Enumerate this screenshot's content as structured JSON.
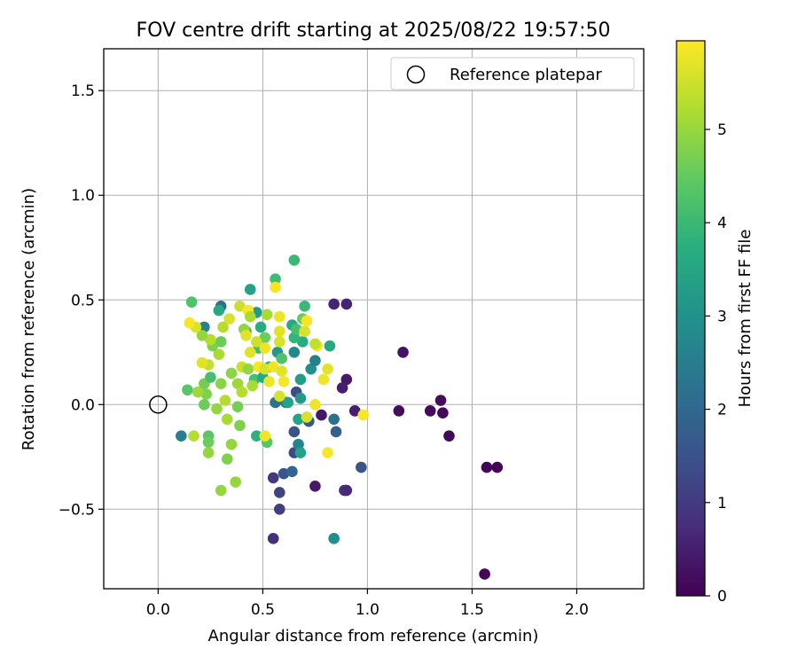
{
  "chart_data": {
    "type": "scatter",
    "title": "FOV centre drift starting at 2025/08/22 19:57:50",
    "xlabel": "Angular distance from reference (arcmin)",
    "ylabel": "Rotation from reference (arcmin)",
    "xlim": [
      -0.26,
      2.32
    ],
    "ylim": [
      -0.88,
      1.7
    ],
    "xticks": [
      0.0,
      0.5,
      1.0,
      1.5,
      2.0
    ],
    "xtick_labels": [
      "0.0",
      "0.5",
      "1.0",
      "1.5",
      "2.0"
    ],
    "yticks": [
      -0.5,
      0.0,
      0.5,
      1.0,
      1.5
    ],
    "ytick_labels": [
      "−0.5",
      "0.0",
      "0.5",
      "1.0",
      "1.5"
    ],
    "grid": true,
    "legend": {
      "position": "upper-right",
      "label": "Reference platepar",
      "marker": "open-circle"
    },
    "reference_point": {
      "x": 0.0,
      "y": 0.0
    },
    "colorbar": {
      "label": "Hours from first FF file",
      "colormap": "viridis",
      "range": [
        0,
        5.95
      ],
      "ticks": [
        0,
        1,
        2,
        3,
        4,
        5
      ],
      "tick_labels": [
        "0",
        "1",
        "2",
        "3",
        "4",
        "5"
      ]
    },
    "points": [
      {
        "x": 1.56,
        "y": -0.81,
        "h": 0.05
      },
      {
        "x": 1.57,
        "y": -0.3,
        "h": 0.05
      },
      {
        "x": 1.62,
        "y": -0.3,
        "h": 0.05
      },
      {
        "x": 1.39,
        "y": -0.15,
        "h": 0.1
      },
      {
        "x": 1.36,
        "y": -0.04,
        "h": 0.1
      },
      {
        "x": 1.35,
        "y": 0.02,
        "h": 0.2
      },
      {
        "x": 1.3,
        "y": -0.03,
        "h": 0.15
      },
      {
        "x": 1.15,
        "y": -0.03,
        "h": 0.2
      },
      {
        "x": 1.17,
        "y": 0.25,
        "h": 0.3
      },
      {
        "x": 0.94,
        "y": -0.03,
        "h": 0.5
      },
      {
        "x": 0.9,
        "y": 0.12,
        "h": 0.4
      },
      {
        "x": 0.88,
        "y": 0.08,
        "h": 0.5
      },
      {
        "x": 0.84,
        "y": 0.48,
        "h": 0.6
      },
      {
        "x": 0.9,
        "y": 0.48,
        "h": 0.6
      },
      {
        "x": 0.78,
        "y": -0.05,
        "h": 0.4
      },
      {
        "x": 0.75,
        "y": -0.39,
        "h": 0.4
      },
      {
        "x": 0.89,
        "y": -0.41,
        "h": 0.9
      },
      {
        "x": 0.9,
        "y": -0.41,
        "h": 0.7
      },
      {
        "x": 0.97,
        "y": -0.3,
        "h": 1.6
      },
      {
        "x": 0.55,
        "y": -0.64,
        "h": 0.8
      },
      {
        "x": 0.58,
        "y": -0.5,
        "h": 1.1
      },
      {
        "x": 0.58,
        "y": -0.42,
        "h": 1.2
      },
      {
        "x": 0.55,
        "y": -0.35,
        "h": 1.0
      },
      {
        "x": 0.6,
        "y": -0.33,
        "h": 1.6
      },
      {
        "x": 0.65,
        "y": -0.23,
        "h": 1.3
      },
      {
        "x": 0.65,
        "y": -0.13,
        "h": 1.5
      },
      {
        "x": 0.66,
        "y": 0.06,
        "h": 1.4
      },
      {
        "x": 0.64,
        "y": -0.32,
        "h": 2.0
      },
      {
        "x": 0.84,
        "y": -0.64,
        "h": 2.9
      },
      {
        "x": 0.85,
        "y": -0.13,
        "h": 1.8
      },
      {
        "x": 0.84,
        "y": -0.07,
        "h": 2.2
      },
      {
        "x": 0.72,
        "y": -0.08,
        "h": 1.7
      },
      {
        "x": 0.56,
        "y": 0.01,
        "h": 2.2
      },
      {
        "x": 0.61,
        "y": 0.01,
        "h": 2.4
      },
      {
        "x": 0.67,
        "y": -0.19,
        "h": 2.7
      },
      {
        "x": 0.68,
        "y": -0.23,
        "h": 3.4
      },
      {
        "x": 0.67,
        "y": -0.07,
        "h": 3.5
      },
      {
        "x": 0.68,
        "y": 0.03,
        "h": 3.2
      },
      {
        "x": 0.73,
        "y": 0.17,
        "h": 3.0
      },
      {
        "x": 0.75,
        "y": 0.21,
        "h": 2.6
      },
      {
        "x": 0.65,
        "y": 0.25,
        "h": 2.8
      },
      {
        "x": 0.68,
        "y": 0.12,
        "h": 3.3
      },
      {
        "x": 0.82,
        "y": 0.28,
        "h": 3.6
      },
      {
        "x": 0.69,
        "y": 0.3,
        "h": 3.7
      },
      {
        "x": 0.64,
        "y": 0.38,
        "h": 3.6
      },
      {
        "x": 0.65,
        "y": 0.32,
        "h": 3.9
      },
      {
        "x": 0.66,
        "y": 0.36,
        "h": 4.2
      },
      {
        "x": 0.7,
        "y": 0.47,
        "h": 4.0
      },
      {
        "x": 0.69,
        "y": 0.41,
        "h": 4.6
      },
      {
        "x": 0.65,
        "y": 0.69,
        "h": 4.0
      },
      {
        "x": 0.56,
        "y": 0.6,
        "h": 4.1
      },
      {
        "x": 0.44,
        "y": 0.55,
        "h": 3.4
      },
      {
        "x": 0.3,
        "y": 0.47,
        "h": 2.2
      },
      {
        "x": 0.29,
        "y": 0.45,
        "h": 3.6
      },
      {
        "x": 0.16,
        "y": 0.49,
        "h": 4.3
      },
      {
        "x": 0.22,
        "y": 0.37,
        "h": 2.6
      },
      {
        "x": 0.47,
        "y": 0.44,
        "h": 3.2
      },
      {
        "x": 0.49,
        "y": 0.37,
        "h": 3.7
      },
      {
        "x": 0.42,
        "y": 0.35,
        "h": 4.0
      },
      {
        "x": 0.51,
        "y": 0.32,
        "h": 4.6
      },
      {
        "x": 0.48,
        "y": 0.27,
        "h": 4.1
      },
      {
        "x": 0.57,
        "y": 0.25,
        "h": 3.2
      },
      {
        "x": 0.53,
        "y": 0.18,
        "h": 3.9
      },
      {
        "x": 0.59,
        "y": 0.22,
        "h": 4.3
      },
      {
        "x": 0.46,
        "y": 0.12,
        "h": 4.2
      },
      {
        "x": 0.5,
        "y": 0.13,
        "h": 3.6
      },
      {
        "x": 0.62,
        "y": 0.01,
        "h": 3.4
      },
      {
        "x": 0.47,
        "y": -0.15,
        "h": 3.8
      },
      {
        "x": 0.52,
        "y": -0.18,
        "h": 4.4
      },
      {
        "x": 0.11,
        "y": -0.15,
        "h": 2.6
      },
      {
        "x": 0.24,
        "y": -0.15,
        "h": 4.4
      },
      {
        "x": 0.24,
        "y": -0.18,
        "h": 4.6
      },
      {
        "x": 0.24,
        "y": -0.23,
        "h": 5.0
      },
      {
        "x": 0.33,
        "y": -0.26,
        "h": 4.8
      },
      {
        "x": 0.35,
        "y": -0.19,
        "h": 5.0
      },
      {
        "x": 0.37,
        "y": -0.37,
        "h": 5.0
      },
      {
        "x": 0.3,
        "y": -0.41,
        "h": 5.0
      },
      {
        "x": 0.39,
        "y": -0.1,
        "h": 4.8
      },
      {
        "x": 0.33,
        "y": -0.07,
        "h": 5.2
      },
      {
        "x": 0.28,
        "y": -0.02,
        "h": 5.0
      },
      {
        "x": 0.22,
        "y": 0.0,
        "h": 4.6
      },
      {
        "x": 0.23,
        "y": 0.05,
        "h": 4.8
      },
      {
        "x": 0.14,
        "y": 0.07,
        "h": 4.4
      },
      {
        "x": 0.19,
        "y": 0.06,
        "h": 5.1
      },
      {
        "x": 0.22,
        "y": 0.1,
        "h": 4.7
      },
      {
        "x": 0.25,
        "y": 0.13,
        "h": 4.2
      },
      {
        "x": 0.3,
        "y": 0.1,
        "h": 4.9
      },
      {
        "x": 0.32,
        "y": 0.02,
        "h": 5.3
      },
      {
        "x": 0.35,
        "y": 0.15,
        "h": 4.9
      },
      {
        "x": 0.38,
        "y": 0.1,
        "h": 5.1
      },
      {
        "x": 0.38,
        "y": -0.01,
        "h": 4.7
      },
      {
        "x": 0.4,
        "y": 0.06,
        "h": 5.3
      },
      {
        "x": 0.45,
        "y": 0.09,
        "h": 5.2
      },
      {
        "x": 0.4,
        "y": 0.18,
        "h": 5.5
      },
      {
        "x": 0.43,
        "y": 0.17,
        "h": 5.0
      },
      {
        "x": 0.29,
        "y": 0.24,
        "h": 5.2
      },
      {
        "x": 0.24,
        "y": 0.19,
        "h": 5.4
      },
      {
        "x": 0.21,
        "y": 0.2,
        "h": 5.7
      },
      {
        "x": 0.26,
        "y": 0.28,
        "h": 4.8
      },
      {
        "x": 0.3,
        "y": 0.3,
        "h": 4.6
      },
      {
        "x": 0.25,
        "y": 0.31,
        "h": 5.3
      },
      {
        "x": 0.21,
        "y": 0.33,
        "h": 5.0
      },
      {
        "x": 0.18,
        "y": 0.37,
        "h": 5.6
      },
      {
        "x": 0.15,
        "y": 0.39,
        "h": 5.9
      },
      {
        "x": 0.31,
        "y": 0.37,
        "h": 5.3
      },
      {
        "x": 0.34,
        "y": 0.41,
        "h": 5.6
      },
      {
        "x": 0.39,
        "y": 0.47,
        "h": 5.5
      },
      {
        "x": 0.41,
        "y": 0.36,
        "h": 5.0
      },
      {
        "x": 0.42,
        "y": 0.33,
        "h": 5.7
      },
      {
        "x": 0.43,
        "y": 0.45,
        "h": 5.9
      },
      {
        "x": 0.44,
        "y": 0.42,
        "h": 5.2
      },
      {
        "x": 0.47,
        "y": 0.3,
        "h": 5.5
      },
      {
        "x": 0.51,
        "y": 0.27,
        "h": 5.8
      },
      {
        "x": 0.52,
        "y": 0.43,
        "h": 5.2
      },
      {
        "x": 0.56,
        "y": 0.56,
        "h": 5.9
      },
      {
        "x": 0.58,
        "y": 0.42,
        "h": 5.8
      },
      {
        "x": 0.58,
        "y": 0.35,
        "h": 5.7
      },
      {
        "x": 0.58,
        "y": 0.3,
        "h": 5.6
      },
      {
        "x": 0.44,
        "y": 0.25,
        "h": 5.7
      },
      {
        "x": 0.48,
        "y": 0.18,
        "h": 5.9
      },
      {
        "x": 0.51,
        "y": 0.17,
        "h": 5.6
      },
      {
        "x": 0.55,
        "y": 0.18,
        "h": 5.8
      },
      {
        "x": 0.59,
        "y": 0.16,
        "h": 5.7
      },
      {
        "x": 0.6,
        "y": 0.11,
        "h": 5.9
      },
      {
        "x": 0.53,
        "y": 0.11,
        "h": 5.8
      },
      {
        "x": 0.58,
        "y": 0.04,
        "h": 5.6
      },
      {
        "x": 0.51,
        "y": -0.15,
        "h": 5.8
      },
      {
        "x": 0.17,
        "y": -0.15,
        "h": 5.3
      },
      {
        "x": 0.7,
        "y": 0.35,
        "h": 5.6
      },
      {
        "x": 0.71,
        "y": 0.4,
        "h": 5.9
      },
      {
        "x": 0.76,
        "y": 0.28,
        "h": 5.9
      },
      {
        "x": 0.75,
        "y": 0.29,
        "h": 5.4
      },
      {
        "x": 0.79,
        "y": 0.12,
        "h": 5.8
      },
      {
        "x": 0.81,
        "y": 0.17,
        "h": 5.7
      },
      {
        "x": 0.75,
        "y": 0.0,
        "h": 5.8
      },
      {
        "x": 0.71,
        "y": -0.06,
        "h": 5.6
      },
      {
        "x": 0.81,
        "y": -0.23,
        "h": 5.9
      },
      {
        "x": 0.98,
        "y": -0.05,
        "h": 5.9
      }
    ]
  }
}
